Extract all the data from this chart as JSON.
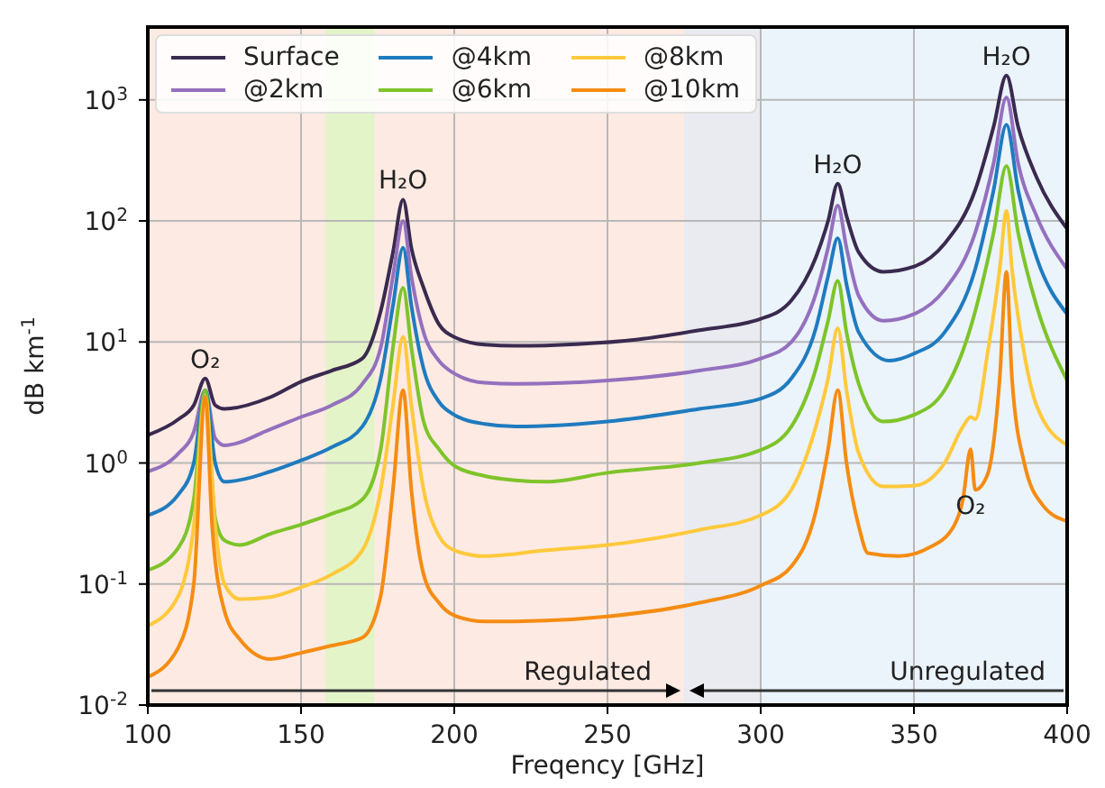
{
  "chart_data": {
    "type": "line",
    "xlabel": "Freqency [GHz]",
    "ylabel": "dB km$^{-1}$",
    "log": "y",
    "grid": true,
    "legend": "top left",
    "marker": "none",
    "line_style": "solid",
    "xlim": [
      100,
      400
    ],
    "xticks": [
      100,
      150,
      200,
      250,
      300,
      350,
      400
    ],
    "ylim": [
      0.01,
      4000
    ],
    "yticks": [
      {
        "value": 0.01,
        "label": "10$^{-2}$"
      },
      {
        "value": 0.1,
        "label": "10$^{-1}$"
      },
      {
        "value": 1,
        "label": "10$^{0}$"
      },
      {
        "value": 10,
        "label": "10$^{1}$"
      },
      {
        "value": 100,
        "label": "10$^{2}$"
      },
      {
        "value": 1000,
        "label": "10$^{3}$"
      }
    ],
    "bands": [
      {
        "axis": "x",
        "from": 100,
        "to": 275,
        "color": "#fdeae3"
      },
      {
        "axis": "x",
        "from": 158,
        "to": 174,
        "color": "#e3f4c8"
      },
      {
        "axis": "x",
        "from": 275,
        "to": 300,
        "color": "#e9ebf0"
      },
      {
        "axis": "x",
        "from": 300,
        "to": 400,
        "color": "#ebf3fb"
      }
    ],
    "annotations": [
      {
        "text": "O₂",
        "x": 118.75,
        "y": 5
      },
      {
        "text": "H₂O",
        "x": 183.3,
        "y": 150
      },
      {
        "text": "H₂O",
        "x": 325.15,
        "y": 203
      },
      {
        "text": "H₂O",
        "x": 380.2,
        "y": 1590
      },
      {
        "text": "O₂",
        "x": 368.5,
        "y": 1.3
      },
      "Regulated",
      "Unregulated"
    ],
    "series": [
      {
        "name": "Surface",
        "color": "#3a2a4f",
        "x": [
          100,
          110,
          115,
          118.75,
          122,
          125,
          140,
          150,
          160,
          170,
          176,
          180,
          183.3,
          186,
          190,
          195,
          200,
          210,
          220,
          240,
          260,
          280,
          300,
          310,
          318,
          322,
          325.15,
          328,
          332,
          340,
          350,
          360,
          370,
          376,
          380.2,
          384,
          390,
          400
        ],
        "values": [
          1.7,
          2.3,
          3,
          5,
          3,
          2.8,
          3.5,
          4.7,
          5.8,
          7.3,
          18,
          55,
          150,
          60,
          28,
          14,
          11,
          9.5,
          9.3,
          9.6,
          10.5,
          12.5,
          15.5,
          22,
          50,
          100,
          203,
          110,
          55,
          38,
          42,
          65,
          180,
          600,
          1590,
          600,
          230,
          86
        ]
      },
      {
        "name": "@2km",
        "color": "#9470be",
        "x": [
          100,
          110,
          115,
          118.75,
          122,
          125,
          140,
          150,
          160,
          170,
          176,
          180,
          183.3,
          186,
          190,
          195,
          200,
          210,
          220,
          250,
          280,
          300,
          310,
          318,
          322,
          325.15,
          328,
          332,
          340,
          350,
          360,
          370,
          376,
          380.2,
          384,
          390,
          400
        ],
        "values": [
          0.85,
          1.2,
          1.8,
          4,
          1.6,
          1.4,
          1.9,
          2.4,
          3,
          4.5,
          9,
          35,
          100,
          35,
          12,
          7,
          5.5,
          4.6,
          4.5,
          4.8,
          5.8,
          7.3,
          10,
          25,
          60,
          134,
          60,
          24,
          15,
          17,
          27,
          80,
          300,
          1050,
          300,
          110,
          40
        ]
      },
      {
        "name": "@4km",
        "color": "#1f7bbf",
        "x": [
          100,
          110,
          115,
          118.75,
          122,
          125,
          140,
          150,
          160,
          170,
          176,
          180,
          183.3,
          186,
          190,
          195,
          200,
          210,
          220,
          250,
          280,
          300,
          310,
          318,
          322,
          325.15,
          328,
          332,
          342,
          350,
          360,
          370,
          376,
          380.2,
          384,
          390,
          400
        ],
        "values": [
          0.37,
          0.55,
          1,
          4,
          1,
          0.7,
          0.85,
          1.05,
          1.35,
          2,
          5,
          20,
          60,
          20,
          6,
          3.2,
          2.5,
          2.1,
          2,
          2.2,
          2.8,
          3.4,
          5,
          13,
          35,
          72,
          30,
          12,
          7,
          8,
          12,
          40,
          180,
          625,
          180,
          50,
          17
        ]
      },
      {
        "name": "@6km",
        "color": "#7ec42a",
        "x": [
          100,
          110,
          115,
          118.75,
          122,
          125,
          130,
          140,
          150,
          160,
          170,
          176,
          180,
          183.3,
          186,
          190,
          195,
          200,
          210,
          220,
          230,
          250,
          280,
          300,
          310,
          318,
          322,
          325.15,
          328,
          332,
          340,
          350,
          360,
          368,
          376,
          380.2,
          384,
          390,
          400
        ],
        "values": [
          0.13,
          0.2,
          0.5,
          4,
          0.35,
          0.23,
          0.21,
          0.26,
          0.31,
          0.38,
          0.5,
          1.3,
          9,
          28,
          9,
          2.2,
          1.3,
          0.95,
          0.78,
          0.72,
          0.7,
          0.83,
          1,
          1.28,
          2,
          6,
          15,
          32,
          12,
          4.5,
          2.2,
          2.5,
          4,
          12,
          80,
          285,
          80,
          20,
          4.8
        ]
      },
      {
        "name": "@8km",
        "color": "#ffc93c",
        "x": [
          100,
          110,
          115,
          118.75,
          122,
          125,
          130,
          140,
          150,
          160,
          170,
          176,
          180,
          183.3,
          186,
          190,
          195,
          200,
          210,
          230,
          250,
          280,
          300,
          310,
          318,
          322,
          325.15,
          328,
          332,
          340,
          350,
          360,
          366,
          368.5,
          370,
          374,
          378,
          380.2,
          382,
          386,
          390,
          400
        ],
        "values": [
          0.045,
          0.08,
          0.3,
          3.5,
          0.3,
          0.1,
          0.075,
          0.078,
          0.094,
          0.12,
          0.19,
          0.6,
          3,
          11,
          3,
          0.6,
          0.25,
          0.19,
          0.17,
          0.19,
          0.21,
          0.28,
          0.37,
          0.6,
          2,
          5,
          13,
          4,
          1.2,
          0.64,
          0.65,
          1,
          2,
          2.4,
          2.3,
          8,
          40,
          121,
          40,
          8,
          3,
          1.4
        ]
      },
      {
        "name": "@10km",
        "color": "#f58c12",
        "x": [
          100,
          110,
          115,
          118.75,
          121,
          125,
          130,
          140,
          150,
          160,
          170,
          176,
          180,
          183.3,
          186,
          190,
          195,
          200,
          210,
          230,
          250,
          280,
          300,
          310,
          318,
          322,
          325.15,
          328,
          332,
          335,
          345,
          355,
          363,
          366,
          368.5,
          370,
          374,
          378,
          380.2,
          382,
          386,
          392,
          400
        ],
        "values": [
          0.017,
          0.03,
          0.1,
          3.5,
          0.3,
          0.06,
          0.035,
          0.024,
          0.027,
          0.031,
          0.036,
          0.08,
          0.6,
          4,
          0.6,
          0.12,
          0.07,
          0.055,
          0.049,
          0.05,
          0.054,
          0.07,
          0.097,
          0.14,
          0.4,
          1.3,
          4,
          1,
          0.3,
          0.18,
          0.17,
          0.2,
          0.3,
          0.5,
          1.3,
          0.6,
          0.8,
          5,
          38,
          5,
          1,
          0.45,
          0.33
        ]
      }
    ]
  }
}
